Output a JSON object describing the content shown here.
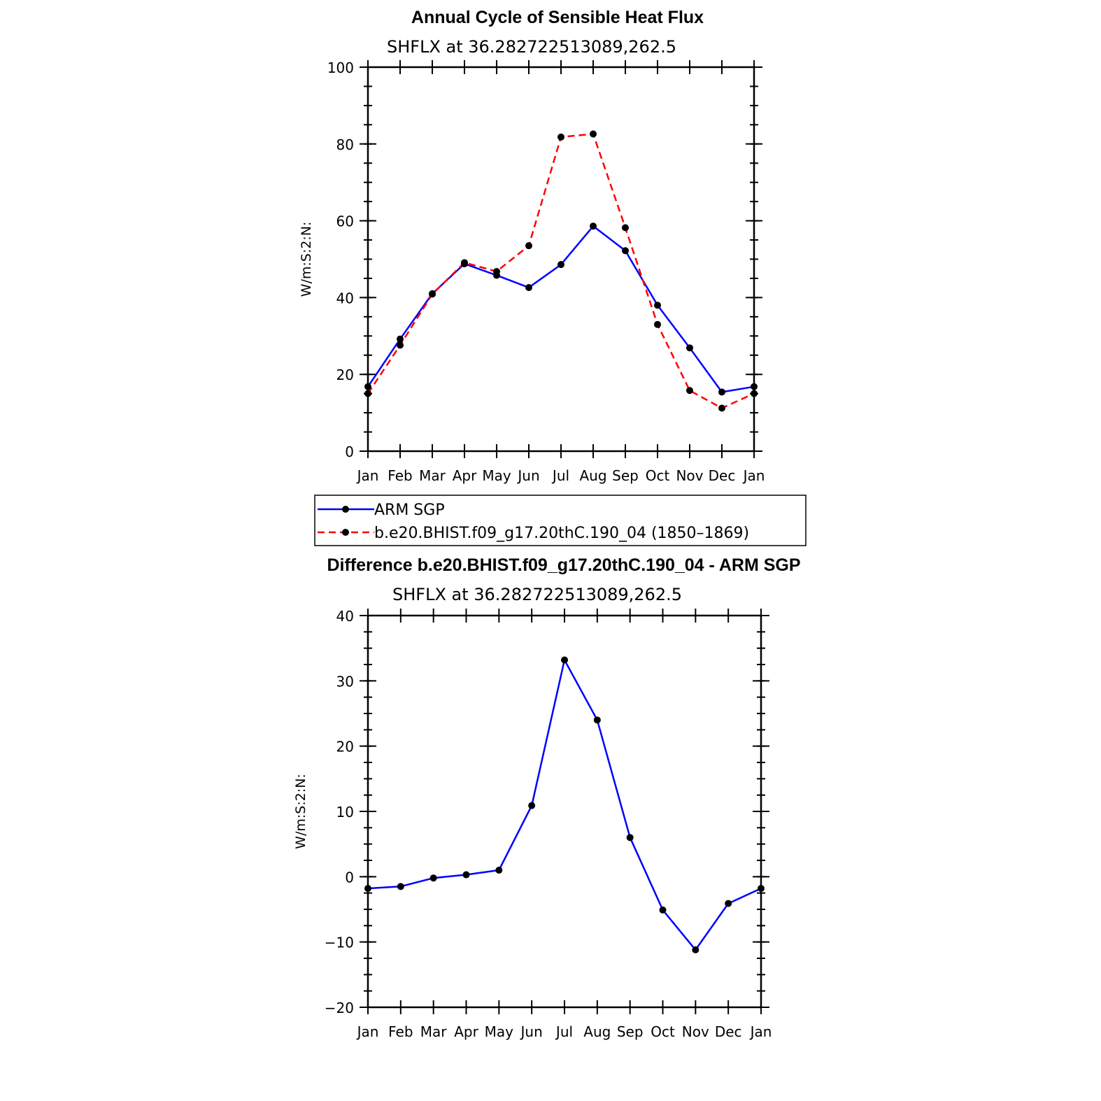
{
  "chart_data": [
    {
      "type": "line",
      "title": "Annual Cycle of Sensible Heat Flux",
      "subtitle": "SHFLX at 36.282722513089,262.5",
      "ylabel": "W/m:S:2:N:",
      "ylim": [
        0,
        100
      ],
      "yticks": [
        0,
        20,
        40,
        60,
        80,
        100
      ],
      "categories": [
        "Jan",
        "Feb",
        "Mar",
        "Apr",
        "May",
        "Jun",
        "Jul",
        "Aug",
        "Sep",
        "Oct",
        "Nov",
        "Dec",
        "Jan"
      ],
      "series": [
        {
          "name": "ARM SGP",
          "color": "#0000ff",
          "dash": "solid",
          "values": [
            16.8,
            29.2,
            41.0,
            48.8,
            45.8,
            42.6,
            48.6,
            58.6,
            52.2,
            38.0,
            26.9,
            15.4,
            16.8
          ]
        },
        {
          "name": "b.e20.BHIST.f09_g17.20thC.190_04 (1850–1869)",
          "color": "#ff0000",
          "dash": "dashed",
          "values": [
            15.0,
            27.6,
            40.9,
            49.1,
            46.8,
            53.5,
            81.8,
            82.6,
            58.2,
            33.0,
            15.8,
            11.2,
            15.0
          ]
        }
      ],
      "legend": "below"
    },
    {
      "type": "line",
      "title": "Difference b.e20.BHIST.f09_g17.20thC.190_04 - ARM SGP",
      "subtitle": "SHFLX at 36.282722513089,262.5",
      "ylabel": "W/m:S:2:N:",
      "ylim": [
        -20,
        40
      ],
      "yticks": [
        -20,
        -10,
        0,
        10,
        20,
        30,
        40
      ],
      "ytick_labels": [
        "−20",
        "−10",
        "0",
        "10",
        "20",
        "30",
        "40"
      ],
      "categories": [
        "Jan",
        "Feb",
        "Mar",
        "Apr",
        "May",
        "Jun",
        "Jul",
        "Aug",
        "Sep",
        "Oct",
        "Nov",
        "Dec",
        "Jan"
      ],
      "series": [
        {
          "color": "#0000ff",
          "dash": "solid",
          "values": [
            -1.8,
            -1.5,
            -0.2,
            0.3,
            1.0,
            10.9,
            33.2,
            24.0,
            6.0,
            -5.1,
            -11.2,
            -4.1,
            -1.8
          ]
        }
      ]
    }
  ]
}
